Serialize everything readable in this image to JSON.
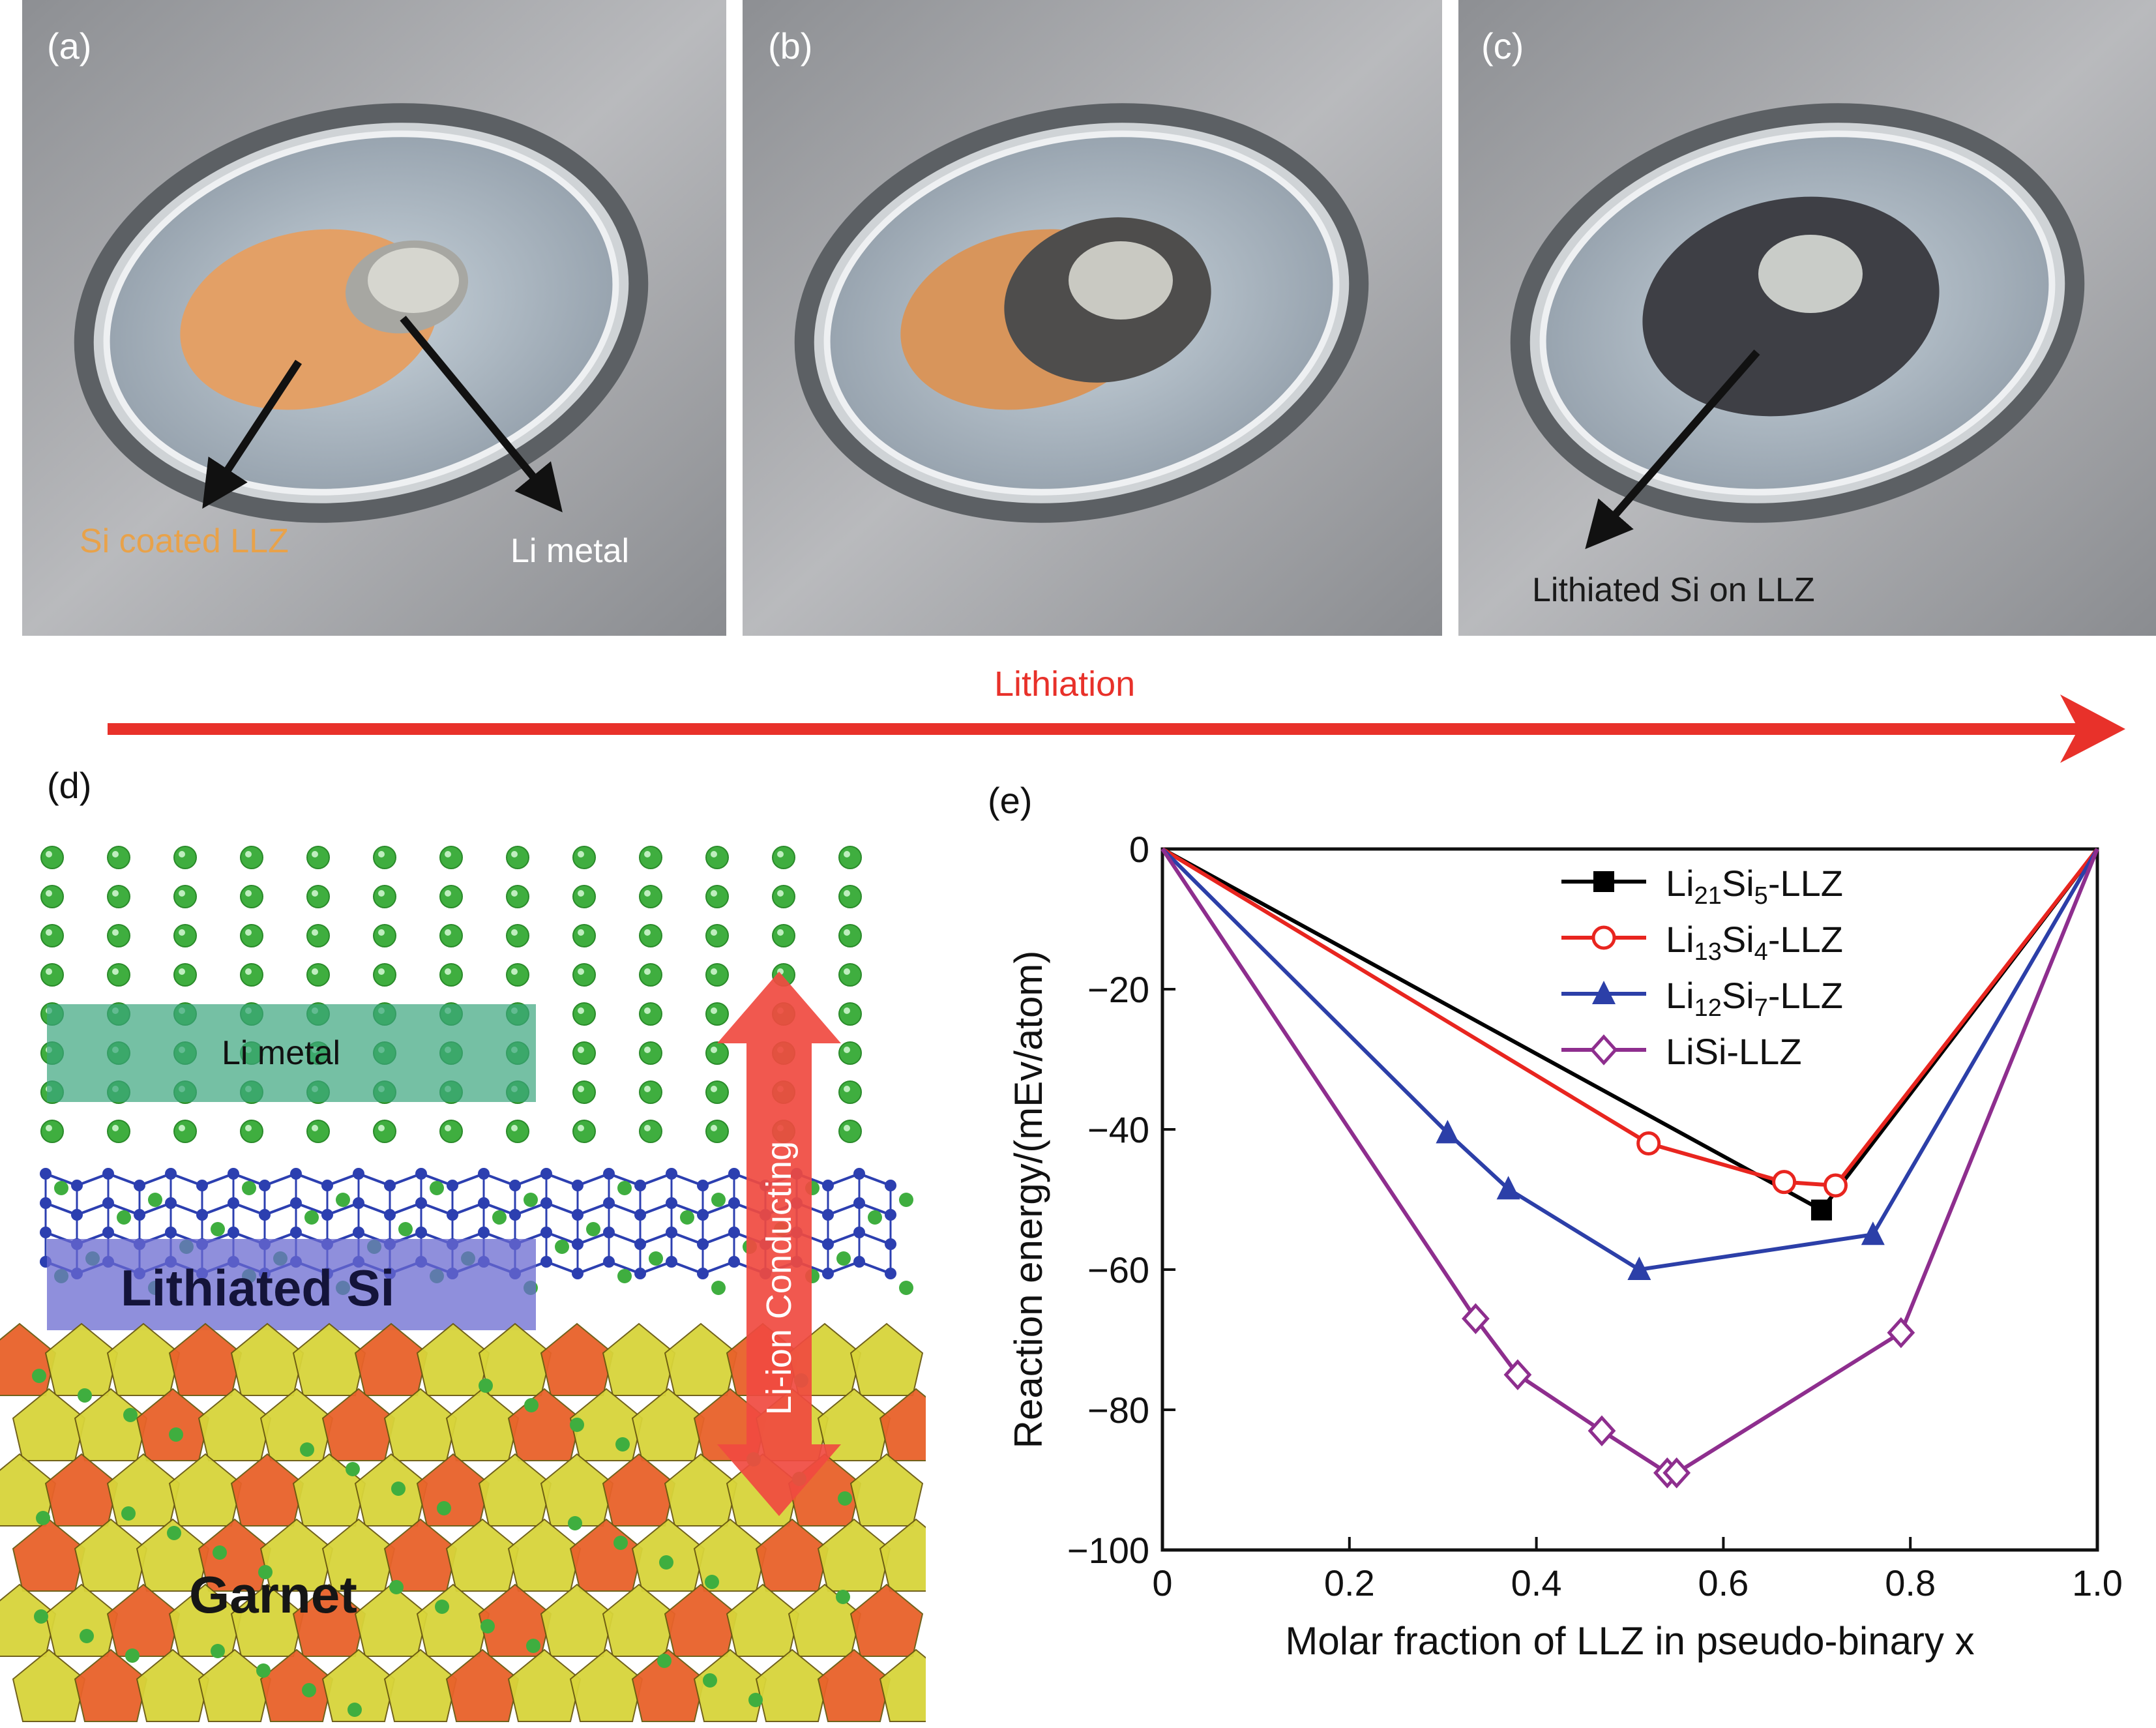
{
  "panels": {
    "a": {
      "label": "(a)",
      "annotation_si": "Si coated LLZ",
      "annotation_li": "Li metal"
    },
    "b": {
      "label": "(b)"
    },
    "c": {
      "label": "(c)",
      "annotation": "Lithiated Si on LLZ"
    },
    "d": {
      "label": "(d)",
      "li_metal": "Li metal",
      "lithiated_si": "Lithiated Si",
      "garnet": "Garnet",
      "conducting": "Li-ion Conducting"
    },
    "e": {
      "label": "(e)"
    }
  },
  "process_arrow": {
    "label": "Lithiation",
    "color": "#e8312a"
  },
  "colors": {
    "si_coating": "#e89a4a",
    "li_atom": "#3fae3f",
    "si_atom": "#2c3fb0",
    "li_metal_band": "#3aa57d",
    "lithiated_band": "#6a6ad0",
    "garnet_yellow": "#d8d43a",
    "garnet_orange": "#e8622a"
  },
  "chart_data": {
    "type": "line",
    "xlabel": "Molar fraction of LLZ in pseudo-binary x",
    "ylabel": "Reaction energy/(mEv/atom)",
    "xlim": [
      0,
      1.0
    ],
    "ylim": [
      -100,
      0
    ],
    "xticks": [
      "0",
      "0.2",
      "0.4",
      "0.6",
      "0.8",
      "1.0"
    ],
    "yticks": [
      "0",
      "−20",
      "−40",
      "−60",
      "−80",
      "−100"
    ],
    "legend_position": "top-right",
    "series": [
      {
        "name": "Li21Si5-LLZ",
        "color": "#000000",
        "marker": "square",
        "x": [
          0,
          0.705,
          1.0
        ],
        "y": [
          0,
          -51.5,
          0
        ]
      },
      {
        "name": "Li13Si4-LLZ",
        "color": "#e8251f",
        "marker": "circle",
        "x": [
          0,
          0.52,
          0.665,
          0.72,
          1.0
        ],
        "y": [
          0,
          -42,
          -47.5,
          -48,
          0
        ]
      },
      {
        "name": "Li12Si7-LLZ",
        "color": "#2c3fa8",
        "marker": "triangle",
        "x": [
          0,
          0.305,
          0.37,
          0.51,
          0.76,
          1.0
        ],
        "y": [
          0,
          -40.5,
          -48.5,
          -60,
          -55,
          0
        ]
      },
      {
        "name": "LiSi-LLZ",
        "color": "#8e2e8e",
        "marker": "diamond",
        "x": [
          0,
          0.335,
          0.38,
          0.47,
          0.54,
          0.55,
          0.79,
          1.0
        ],
        "y": [
          0,
          -67,
          -75,
          -83,
          -89,
          -89,
          -69,
          0
        ]
      }
    ],
    "legend_labels": [
      {
        "base": "Li",
        "sub1": "21",
        "mid": "Si",
        "sub2": "5",
        "tail": "-LLZ"
      },
      {
        "base": "Li",
        "sub1": "13",
        "mid": "Si",
        "sub2": "4",
        "tail": "-LLZ"
      },
      {
        "base": "Li",
        "sub1": "12",
        "mid": "Si",
        "sub2": "7",
        "tail": "-LLZ"
      },
      {
        "base": "LiSi-LLZ",
        "sub1": "",
        "mid": "",
        "sub2": "",
        "tail": ""
      }
    ]
  }
}
